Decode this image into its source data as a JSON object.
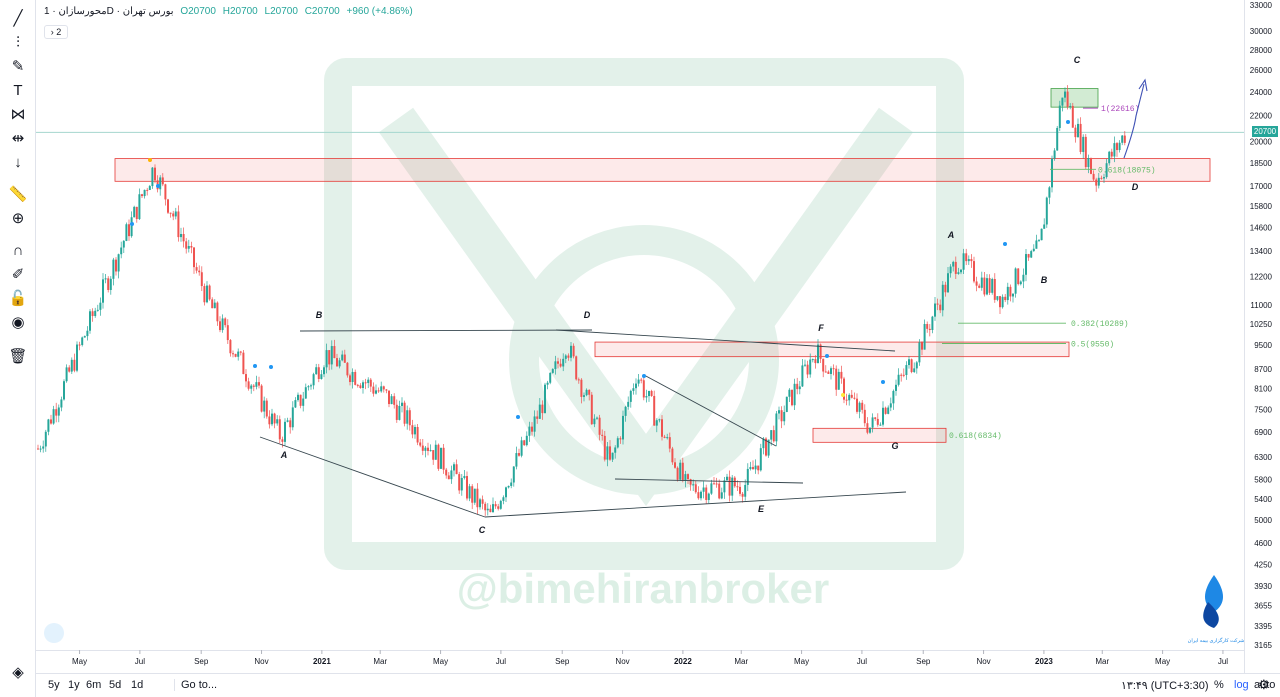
{
  "legend": {
    "symbol": "محورسازان",
    "interval": "1D",
    "exchange": "بورس تهران",
    "open": "O20700",
    "high": "H20700",
    "low": "L20700",
    "close": "C20700",
    "change": "+960 (+4.86%)",
    "collapse_label": "2"
  },
  "watermark": "@bimehiranbroker",
  "brand_logo_text": "شرکت کارگزاری بیمه ایران",
  "bottom_bar": {
    "ranges": [
      "5y",
      "1y",
      "6m",
      "5d",
      "1d"
    ],
    "goto": "Go to...",
    "clock": "۱۳:۴۹ (UTC+3:30)",
    "percent": "%",
    "log": "log",
    "auto": "auto"
  },
  "toolbar_icons": [
    "trend-line-icon",
    "fib-tool-icon",
    "brush-icon",
    "text-icon",
    "pattern-icon",
    "measure-icon",
    "arrow-down-icon",
    "ruler-icon",
    "zoom-icon",
    "magnet-icon",
    "lock-drawing-icon",
    "unlock-icon",
    "eye-icon",
    "trash-icon",
    "layers-icon"
  ],
  "colors": {
    "up": "#26a69a",
    "down": "#ef5350",
    "zone_red_fill": "rgba(239,83,80,0.12)",
    "zone_red_stroke": "#e53935",
    "zone_green_fill": "rgba(76,175,80,0.25)",
    "fib_purple": "#ab47bc",
    "fib_green": "#66bb6a",
    "arrow": "#3f51b5"
  },
  "chart_data": {
    "type": "candlestick",
    "price_axis_ticks": [
      "33000",
      "30000",
      "28000",
      "26000",
      "24000",
      "22000",
      "20700",
      "20000",
      "18500",
      "17000",
      "15800",
      "14600",
      "13400",
      "12200",
      "11000",
      "10250",
      "9500",
      "8700",
      "8100",
      "7500",
      "6900",
      "6300",
      "5800",
      "5400",
      "5000",
      "4600",
      "4250",
      "3930",
      "3655",
      "3395",
      "3165"
    ],
    "time_axis_ticks": [
      "May",
      "Jul",
      "Sep",
      "Nov",
      "2021",
      "Mar",
      "May",
      "Jul",
      "Sep",
      "Nov",
      "2022",
      "Mar",
      "May",
      "Jul",
      "Sep",
      "Nov",
      "2023",
      "Mar",
      "May",
      "Jul"
    ],
    "last_price": 20700,
    "wave_labels": [
      "B",
      "A",
      "C",
      "D",
      "E",
      "F",
      "G",
      "A",
      "B",
      "C",
      "D"
    ],
    "fib_levels": [
      {
        "label": "1(22616)",
        "price": 22616
      },
      {
        "label": "0.618(18075)",
        "price": 18075
      },
      {
        "label": "0.382(10289)",
        "price": 10289
      },
      {
        "label": "0.5(9550)",
        "price": 9550
      },
      {
        "label": "0.618(6834)",
        "price": 6834
      }
    ],
    "zones": [
      {
        "from": 17300,
        "to": 18800
      },
      {
        "from": 9100,
        "to": 9600
      },
      {
        "from": 6650,
        "to": 7000
      },
      {
        "from": 22700,
        "to": 24300
      }
    ],
    "anchor_prices": [
      {
        "date": "2020-03-20",
        "price": 6500
      },
      {
        "date": "2020-07-15",
        "price": 18200
      },
      {
        "date": "2020-09-10",
        "price": 11000
      },
      {
        "date": "2020-11-20",
        "price": 6800
      },
      {
        "date": "2021-01-05",
        "price": 9200
      },
      {
        "date": "2021-03-10",
        "price": 7800
      },
      {
        "date": "2021-06-20",
        "price": 5050
      },
      {
        "date": "2021-08-05",
        "price": 7200
      },
      {
        "date": "2021-09-05",
        "price": 9600
      },
      {
        "date": "2021-10-20",
        "price": 6100
      },
      {
        "date": "2021-11-15",
        "price": 8600
      },
      {
        "date": "2022-01-05",
        "price": 5600
      },
      {
        "date": "2022-03-05",
        "price": 5700
      },
      {
        "date": "2022-05-15",
        "price": 9300
      },
      {
        "date": "2022-07-10",
        "price": 7000
      },
      {
        "date": "2022-08-25",
        "price": 9200
      },
      {
        "date": "2022-10-05",
        "price": 13000
      },
      {
        "date": "2022-11-20",
        "price": 11300
      },
      {
        "date": "2022-12-28",
        "price": 13600
      },
      {
        "date": "2023-01-20",
        "price": 24200
      },
      {
        "date": "2023-02-22",
        "price": 17300
      },
      {
        "date": "2023-03-25",
        "price": 20700
      }
    ]
  }
}
